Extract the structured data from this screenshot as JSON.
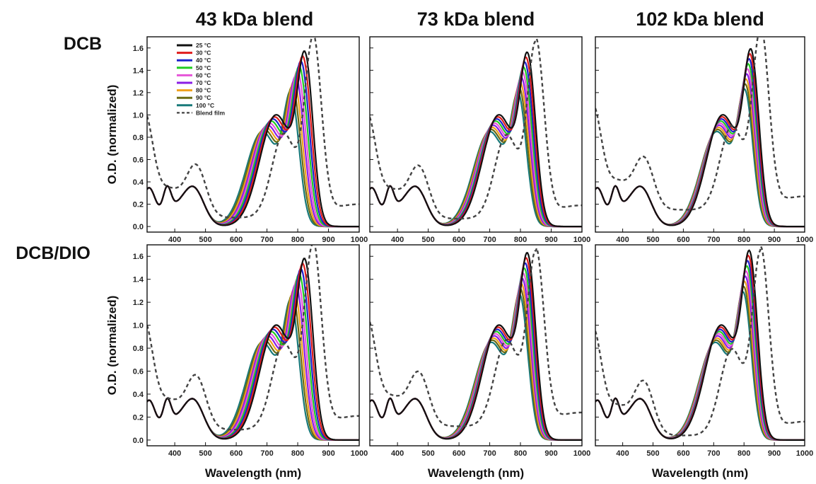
{
  "column_titles": [
    "43 kDa blend",
    "73 kDa blend",
    "102 kDa blend"
  ],
  "row_titles": [
    "DCB",
    "DCB/DIO"
  ],
  "xlabel": "Wavelength (nm)",
  "ylabel": "O.D. (normalized)",
  "x_ticks": [
    400,
    500,
    600,
    700,
    800,
    900,
    1000
  ],
  "y_ticks": [
    "0.0",
    "0.2",
    "0.4",
    "0.6",
    "0.8",
    "1.0",
    "1.2",
    "1.4",
    "1.6"
  ],
  "legend": {
    "placement": "top-left of first panel",
    "entries": [
      "25 °C",
      "30 °C",
      "40 °C",
      "50 °C",
      "60 °C",
      "70 °C",
      "80 °C",
      "90 °C",
      "100 °C",
      "Blend film"
    ]
  },
  "colors": {
    "25 °C": "#111111",
    "30 °C": "#e01b1b",
    "40 °C": "#1c22cc",
    "50 °C": "#22cc22",
    "60 °C": "#e655d8",
    "70 °C": "#8a1ee6",
    "80 °C": "#f0a21e",
    "90 °C": "#6b6b14",
    "100 °C": "#197a7a",
    "Blend film": "#444444"
  },
  "chart_data": [
    {
      "type": "line",
      "row": "DCB",
      "column": "43 kDa blend",
      "xlim": [
        310,
        1000
      ],
      "ylim": [
        -0.05,
        1.7
      ],
      "solution_peak_25C": 825,
      "solution_peak_value_25C": 1.36,
      "solution_peak_100C": 780,
      "film_peak": 850,
      "film_peak_value": 1.58,
      "film_min": 635,
      "film_min_value": 0.08
    },
    {
      "type": "line",
      "row": "DCB",
      "column": "73 kDa blend",
      "xlim": [
        310,
        1000
      ],
      "ylim": [
        -0.05,
        1.7
      ],
      "solution_peak_25C": 825,
      "solution_peak_value_25C": 1.35,
      "solution_peak_100C": 795,
      "film_peak": 850,
      "film_peak_value": 1.55,
      "film_min": 640,
      "film_min_value": 0.07
    },
    {
      "type": "line",
      "row": "DCB",
      "column": "102 kDa blend",
      "xlim": [
        310,
        1000
      ],
      "ylim": [
        -0.05,
        1.7
      ],
      "solution_peak_25C": 825,
      "solution_peak_value_25C": 1.38,
      "solution_peak_100C": 805,
      "film_peak": 855,
      "film_peak_value": 1.58,
      "film_min": 640,
      "film_min_value": 0.15
    },
    {
      "type": "line",
      "row": "DCB/DIO",
      "column": "43 kDa blend",
      "xlim": [
        310,
        1000
      ],
      "ylim": [
        -0.05,
        1.7
      ],
      "solution_peak_25C": 825,
      "solution_peak_value_25C": 1.37,
      "solution_peak_100C": 780,
      "film_peak": 850,
      "film_peak_value": 1.58,
      "film_min": 635,
      "film_min_value": 0.09
    },
    {
      "type": "line",
      "row": "DCB/DIO",
      "column": "73 kDa blend",
      "xlim": [
        310,
        1000
      ],
      "ylim": [
        -0.05,
        1.7
      ],
      "solution_peak_25C": 825,
      "solution_peak_value_25C": 1.42,
      "solution_peak_100C": 800,
      "film_peak": 850,
      "film_peak_value": 1.49,
      "film_min": 640,
      "film_min_value": 0.12
    },
    {
      "type": "line",
      "row": "DCB/DIO",
      "column": "102 kDa blend",
      "xlim": [
        310,
        1000
      ],
      "ylim": [
        -0.05,
        1.7
      ],
      "solution_peak_25C": 820,
      "solution_peak_value_25C": 1.44,
      "solution_peak_100C": 800,
      "film_peak": 855,
      "film_peak_value": 1.57,
      "film_min": 640,
      "film_min_value": 0.04
    }
  ]
}
